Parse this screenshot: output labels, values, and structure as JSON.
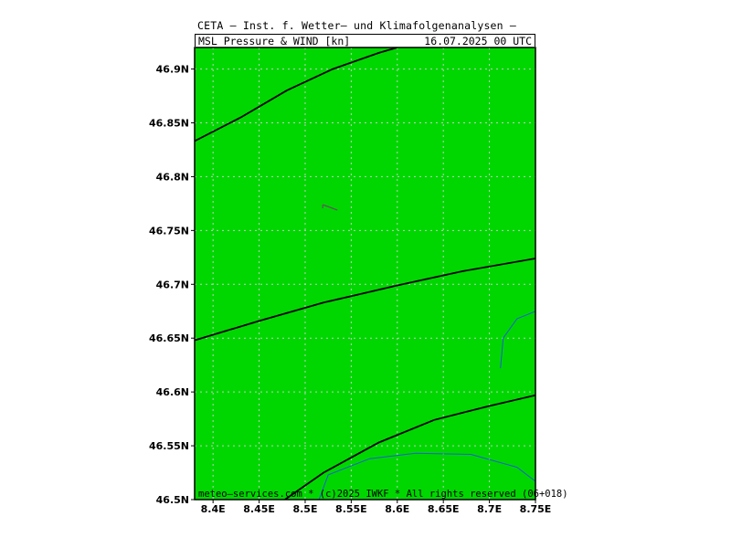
{
  "header": {
    "title": "CETA — Inst. f. Wetter— und Klimafolgenanalysen —",
    "subtitle": "MSL_Pressure_&_WIND_[kn]",
    "valid_time": "16.07.2025 00 UTC"
  },
  "footer": {
    "credit": "meteo—services.com * (c)2025 IWKF * All rights reserved (06+018)"
  },
  "colors": {
    "land_fill": "#00d700",
    "grid": "#c8c8c8",
    "isobar": "#000000",
    "waterway": "#1e5fd0",
    "wind_barb": "#5a5a5a",
    "frame": "#000000"
  },
  "map": {
    "lon_range": [
      8.38,
      8.75
    ],
    "lat_range": [
      46.5,
      46.92
    ],
    "lon_ticks": [
      {
        "value": 8.4,
        "label": "8.4E"
      },
      {
        "value": 8.45,
        "label": "8.45E"
      },
      {
        "value": 8.5,
        "label": "8.5E"
      },
      {
        "value": 8.55,
        "label": "8.55E"
      },
      {
        "value": 8.6,
        "label": "8.6E"
      },
      {
        "value": 8.65,
        "label": "8.65E"
      },
      {
        "value": 8.7,
        "label": "8.7E"
      },
      {
        "value": 8.75,
        "label": "8.75E"
      }
    ],
    "lat_ticks": [
      {
        "value": 46.5,
        "label": "46.5N"
      },
      {
        "value": 46.55,
        "label": "46.55N"
      },
      {
        "value": 46.6,
        "label": "46.6N"
      },
      {
        "value": 46.65,
        "label": "46.65N"
      },
      {
        "value": 46.7,
        "label": "46.7N"
      },
      {
        "value": 46.75,
        "label": "46.75N"
      },
      {
        "value": 46.8,
        "label": "46.8N"
      },
      {
        "value": 46.85,
        "label": "46.85N"
      },
      {
        "value": 46.9,
        "label": "46.9N"
      }
    ],
    "isobars": [
      [
        [
          8.38,
          46.833
        ],
        [
          8.43,
          46.855
        ],
        [
          8.48,
          46.88
        ],
        [
          8.53,
          46.9
        ],
        [
          8.58,
          46.915
        ],
        [
          8.6,
          46.92
        ]
      ],
      [
        [
          8.38,
          46.648
        ],
        [
          8.45,
          46.666
        ],
        [
          8.52,
          46.683
        ],
        [
          8.6,
          46.699
        ],
        [
          8.67,
          46.712
        ],
        [
          8.75,
          46.724
        ]
      ],
      [
        [
          8.478,
          46.5
        ],
        [
          8.52,
          46.525
        ],
        [
          8.58,
          46.553
        ],
        [
          8.64,
          46.574
        ],
        [
          8.7,
          46.587
        ],
        [
          8.75,
          46.597
        ]
      ]
    ],
    "waterways": [
      [
        [
          8.712,
          46.622
        ],
        [
          8.715,
          46.65
        ],
        [
          8.73,
          46.668
        ],
        [
          8.75,
          46.675
        ]
      ],
      [
        [
          8.515,
          46.5
        ],
        [
          8.525,
          46.523
        ],
        [
          8.57,
          46.538
        ],
        [
          8.62,
          46.543
        ],
        [
          8.68,
          46.542
        ],
        [
          8.73,
          46.53
        ],
        [
          8.75,
          46.517
        ]
      ]
    ],
    "wind_barbs": [
      {
        "lon": 8.535,
        "lat": 46.769,
        "direction_deg": 290
      }
    ]
  }
}
